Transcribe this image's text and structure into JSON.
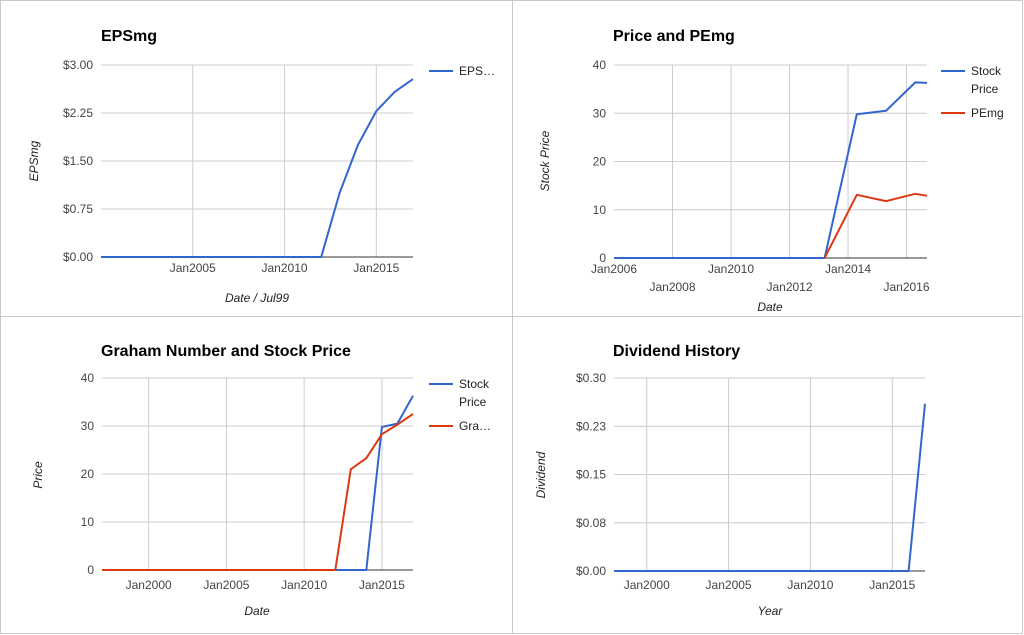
{
  "chart_data": [
    {
      "type": "line",
      "title": "EPSmg",
      "xlabel": "Date / Jul99",
      "ylabel": "EPSmg",
      "xlim": [
        2000,
        2017
      ],
      "ylim": [
        0,
        3
      ],
      "yticks": [
        0,
        0.75,
        1.5,
        2.25,
        3.0
      ],
      "ytick_labels": [
        "$0.00",
        "$0.75",
        "$1.50",
        "$2.25",
        "$3.00"
      ],
      "xticks": [
        2005,
        2010,
        2015
      ],
      "xtick_labels": [
        "Jan2005",
        "Jan2010",
        "Jan2015"
      ],
      "grid": true,
      "legend_position": "right",
      "series": [
        {
          "name": "EPS…",
          "color": "#3366cc",
          "x": [
            2000,
            2012,
            2013,
            2014,
            2015,
            2016,
            2017
          ],
          "y": [
            0,
            0,
            1.0,
            1.75,
            2.28,
            2.58,
            2.78
          ]
        }
      ]
    },
    {
      "type": "line",
      "title": "Price and PEmg",
      "xlabel": "Date",
      "ylabel": "Stock Price",
      "xlim": [
        2006,
        2016.7
      ],
      "ylim": [
        0,
        40
      ],
      "yticks": [
        0,
        10,
        20,
        30,
        40
      ],
      "ytick_labels": [
        "0",
        "10",
        "20",
        "30",
        "40"
      ],
      "xticks": [
        2006,
        2008,
        2010,
        2012,
        2014,
        2016
      ],
      "xtick_labels": [
        "Jan2006",
        "Jan2008",
        "Jan2010",
        "Jan2012",
        "Jan2014",
        "Jan2016"
      ],
      "grid": true,
      "legend_position": "right",
      "series": [
        {
          "name": "Stock Price",
          "color": "#3366cc",
          "x": [
            2006,
            2013.2,
            2014.3,
            2015.3,
            2016.3,
            2016.7
          ],
          "y": [
            0,
            0,
            29.8,
            30.5,
            36.4,
            36.3
          ]
        },
        {
          "name": "PEmg",
          "color": "#dc3912",
          "x": [
            2013.2,
            2014.3,
            2015.3,
            2016.3,
            2016.7
          ],
          "y": [
            0,
            13.1,
            11.8,
            13.3,
            12.9
          ]
        }
      ]
    },
    {
      "type": "line",
      "title": "Graham Number and Stock Price",
      "xlabel": "Date",
      "ylabel": "Price",
      "xlim": [
        1997,
        2017
      ],
      "ylim": [
        0,
        40
      ],
      "yticks": [
        0,
        10,
        20,
        30,
        40
      ],
      "ytick_labels": [
        "0",
        "10",
        "20",
        "30",
        "40"
      ],
      "xticks": [
        2000,
        2005,
        2010,
        2015
      ],
      "xtick_labels": [
        "Jan2000",
        "Jan2005",
        "Jan2010",
        "Jan2015"
      ],
      "grid": true,
      "legend_position": "right",
      "series": [
        {
          "name": "Stock Price",
          "color": "#3366cc",
          "x": [
            1997,
            2014,
            2015,
            2016,
            2017
          ],
          "y": [
            0,
            0,
            29.8,
            30.5,
            36.3
          ]
        },
        {
          "name": "Gra…",
          "color": "#dc3912",
          "x": [
            1997,
            2012,
            2013,
            2014,
            2015,
            2016,
            2017
          ],
          "y": [
            0,
            0,
            21,
            23.3,
            28.3,
            30.3,
            32.5
          ]
        }
      ]
    },
    {
      "type": "line",
      "title": "Dividend History",
      "xlabel": "Year",
      "ylabel": "Dividend",
      "xlim": [
        1998,
        2017
      ],
      "ylim": [
        0,
        0.3
      ],
      "yticks": [
        0,
        0.075,
        0.15,
        0.225,
        0.3
      ],
      "ytick_labels": [
        "$0.00",
        "$0.08",
        "$0.15",
        "$0.23",
        "$0.30"
      ],
      "xticks": [
        2000,
        2005,
        2010,
        2015
      ],
      "xtick_labels": [
        "Jan2000",
        "Jan2005",
        "Jan2010",
        "Jan2015"
      ],
      "grid": true,
      "legend_position": "none",
      "series": [
        {
          "color": "#3366cc",
          "x": [
            1998,
            2016,
            2017
          ],
          "y": [
            0,
            0,
            0.26
          ]
        }
      ]
    }
  ]
}
